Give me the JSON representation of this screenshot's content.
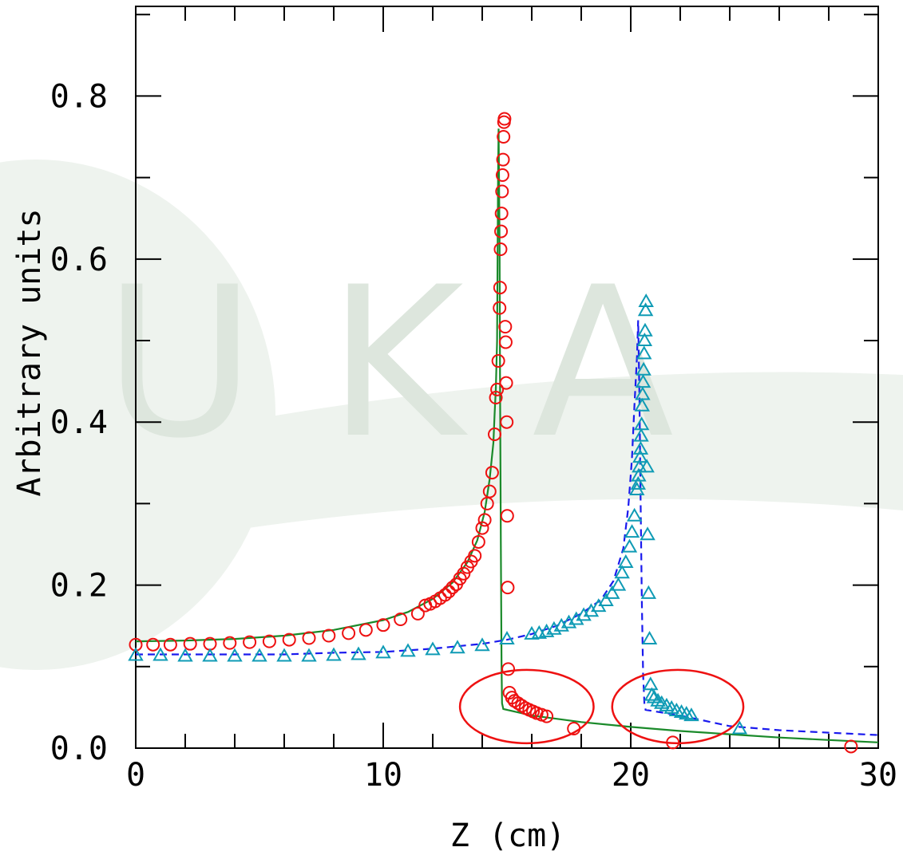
{
  "chart_data": {
    "type": "scatter",
    "title": "",
    "xlabel": "Z (cm)",
    "ylabel": "Arbitrary units",
    "xlim": [
      0,
      30
    ],
    "ylim": [
      0,
      0.91
    ],
    "xticks": [
      0,
      10,
      20,
      30
    ],
    "xtick_labels": [
      "0",
      "10",
      "20",
      "30"
    ],
    "yticks": [
      0.0,
      0.2,
      0.4,
      0.6,
      0.8
    ],
    "ytick_labels": [
      "0.0",
      "0.2",
      "0.4",
      "0.6",
      "0.8"
    ],
    "grid": false,
    "legend": "none",
    "watermark": "UKA",
    "series": [
      {
        "kind": "line",
        "style": "solid",
        "color": "#1a8a2a",
        "points": [
          [
            0,
            0.131
          ],
          [
            2,
            0.132
          ],
          [
            4,
            0.134
          ],
          [
            6,
            0.138
          ],
          [
            8,
            0.145
          ],
          [
            10,
            0.157
          ],
          [
            11,
            0.167
          ],
          [
            12,
            0.183
          ],
          [
            12.8,
            0.203
          ],
          [
            13.4,
            0.228
          ],
          [
            13.8,
            0.255
          ],
          [
            14.1,
            0.29
          ],
          [
            14.3,
            0.33
          ],
          [
            14.45,
            0.375
          ],
          [
            14.5,
            0.41
          ],
          [
            14.55,
            0.44
          ],
          [
            14.6,
            0.5
          ],
          [
            14.62,
            0.6
          ],
          [
            14.64,
            0.7
          ],
          [
            14.66,
            0.76
          ],
          [
            14.7,
            0.62
          ],
          [
            14.72,
            0.45
          ],
          [
            14.75,
            0.25
          ],
          [
            14.78,
            0.1
          ],
          [
            14.8,
            0.055
          ],
          [
            14.85,
            0.048
          ],
          [
            16,
            0.04
          ],
          [
            18,
            0.032
          ],
          [
            20,
            0.026
          ],
          [
            22,
            0.021
          ],
          [
            24,
            0.017
          ],
          [
            26,
            0.013
          ],
          [
            28,
            0.01
          ],
          [
            30,
            0.007
          ]
        ]
      },
      {
        "kind": "line",
        "style": "dashed",
        "color": "#1a1aee",
        "points": [
          [
            0,
            0.115
          ],
          [
            2,
            0.115
          ],
          [
            4,
            0.115
          ],
          [
            6,
            0.115
          ],
          [
            8,
            0.117
          ],
          [
            10,
            0.118
          ],
          [
            12,
            0.122
          ],
          [
            14,
            0.128
          ],
          [
            15,
            0.133
          ],
          [
            16,
            0.14
          ],
          [
            17,
            0.15
          ],
          [
            18,
            0.165
          ],
          [
            18.8,
            0.182
          ],
          [
            19.3,
            0.205
          ],
          [
            19.7,
            0.245
          ],
          [
            19.9,
            0.295
          ],
          [
            20.05,
            0.355
          ],
          [
            20.15,
            0.42
          ],
          [
            20.25,
            0.48
          ],
          [
            20.3,
            0.525
          ],
          [
            20.35,
            0.43
          ],
          [
            20.4,
            0.3
          ],
          [
            20.45,
            0.18
          ],
          [
            20.5,
            0.09
          ],
          [
            20.55,
            0.055
          ],
          [
            20.6,
            0.047
          ],
          [
            22,
            0.04
          ],
          [
            24,
            0.027
          ],
          [
            26,
            0.022
          ],
          [
            28,
            0.019
          ],
          [
            30,
            0.016
          ]
        ]
      },
      {
        "kind": "markers",
        "marker": "circle",
        "color": "#ee1111",
        "points": [
          [
            0,
            0.127
          ],
          [
            0.7,
            0.127
          ],
          [
            1.4,
            0.127
          ],
          [
            2.2,
            0.128
          ],
          [
            3,
            0.128
          ],
          [
            3.8,
            0.129
          ],
          [
            4.6,
            0.13
          ],
          [
            5.4,
            0.131
          ],
          [
            6.2,
            0.133
          ],
          [
            7,
            0.135
          ],
          [
            7.8,
            0.138
          ],
          [
            8.6,
            0.141
          ],
          [
            9.3,
            0.145
          ],
          [
            10,
            0.151
          ],
          [
            10.7,
            0.158
          ],
          [
            11.4,
            0.165
          ],
          [
            11.7,
            0.175
          ],
          [
            11.9,
            0.177
          ],
          [
            12.1,
            0.18
          ],
          [
            12.3,
            0.184
          ],
          [
            12.5,
            0.188
          ],
          [
            12.65,
            0.192
          ],
          [
            12.8,
            0.197
          ],
          [
            12.95,
            0.201
          ],
          [
            13.1,
            0.208
          ],
          [
            13.25,
            0.214
          ],
          [
            13.4,
            0.222
          ],
          [
            13.55,
            0.229
          ],
          [
            13.7,
            0.236
          ],
          [
            13.85,
            0.253
          ],
          [
            14,
            0.27
          ],
          [
            14.1,
            0.28
          ],
          [
            14.2,
            0.3
          ],
          [
            14.3,
            0.315
          ],
          [
            14.4,
            0.338
          ],
          [
            14.5,
            0.385
          ],
          [
            14.55,
            0.43
          ],
          [
            14.6,
            0.44
          ],
          [
            14.65,
            0.475
          ],
          [
            14.7,
            0.54
          ],
          [
            14.72,
            0.565
          ],
          [
            14.74,
            0.612
          ],
          [
            14.76,
            0.634
          ],
          [
            14.78,
            0.656
          ],
          [
            14.8,
            0.683
          ],
          [
            14.82,
            0.703
          ],
          [
            14.84,
            0.722
          ],
          [
            14.86,
            0.75
          ],
          [
            14.88,
            0.768
          ],
          [
            14.9,
            0.772
          ],
          [
            14.93,
            0.517
          ],
          [
            14.95,
            0.498
          ],
          [
            14.97,
            0.448
          ],
          [
            14.99,
            0.4
          ],
          [
            15.01,
            0.285
          ],
          [
            15.03,
            0.197
          ],
          [
            15.05,
            0.097
          ],
          [
            15.1,
            0.068
          ],
          [
            15.2,
            0.062
          ],
          [
            15.3,
            0.058
          ],
          [
            15.45,
            0.055
          ],
          [
            15.6,
            0.052
          ],
          [
            15.75,
            0.049
          ],
          [
            15.9,
            0.047
          ],
          [
            16.05,
            0.045
          ],
          [
            16.2,
            0.043
          ],
          [
            16.4,
            0.041
          ],
          [
            16.6,
            0.039
          ],
          [
            17.7,
            0.024
          ],
          [
            21.7,
            0.007
          ],
          [
            28.9,
            0.002
          ]
        ]
      },
      {
        "kind": "markers",
        "marker": "triangle",
        "color": "#0f9bb5",
        "points": [
          [
            0,
            0.114
          ],
          [
            1,
            0.114
          ],
          [
            2,
            0.113
          ],
          [
            3,
            0.113
          ],
          [
            4,
            0.113
          ],
          [
            5,
            0.113
          ],
          [
            6,
            0.113
          ],
          [
            7,
            0.113
          ],
          [
            8,
            0.114
          ],
          [
            9,
            0.115
          ],
          [
            10,
            0.117
          ],
          [
            11,
            0.119
          ],
          [
            12,
            0.121
          ],
          [
            13,
            0.123
          ],
          [
            14,
            0.126
          ],
          [
            15,
            0.134
          ],
          [
            16,
            0.14
          ],
          [
            16.3,
            0.141
          ],
          [
            16.6,
            0.143
          ],
          [
            16.9,
            0.146
          ],
          [
            17.2,
            0.15
          ],
          [
            17.5,
            0.154
          ],
          [
            17.8,
            0.158
          ],
          [
            18.1,
            0.163
          ],
          [
            18.4,
            0.168
          ],
          [
            18.7,
            0.174
          ],
          [
            19,
            0.181
          ],
          [
            19.25,
            0.19
          ],
          [
            19.5,
            0.2
          ],
          [
            19.65,
            0.215
          ],
          [
            19.8,
            0.228
          ],
          [
            19.95,
            0.247
          ],
          [
            20.05,
            0.265
          ],
          [
            20.15,
            0.285
          ],
          [
            20.25,
            0.317
          ],
          [
            20.3,
            0.324
          ],
          [
            20.32,
            0.334
          ],
          [
            20.35,
            0.345
          ],
          [
            20.38,
            0.357
          ],
          [
            20.4,
            0.367
          ],
          [
            20.42,
            0.383
          ],
          [
            20.44,
            0.397
          ],
          [
            20.46,
            0.42
          ],
          [
            20.48,
            0.434
          ],
          [
            20.5,
            0.449
          ],
          [
            20.52,
            0.464
          ],
          [
            20.54,
            0.484
          ],
          [
            20.56,
            0.5
          ],
          [
            20.58,
            0.512
          ],
          [
            20.6,
            0.537
          ],
          [
            20.62,
            0.548
          ],
          [
            20.65,
            0.345
          ],
          [
            20.68,
            0.262
          ],
          [
            20.72,
            0.19
          ],
          [
            20.76,
            0.134
          ],
          [
            20.8,
            0.078
          ],
          [
            20.85,
            0.065
          ],
          [
            20.95,
            0.062
          ],
          [
            21.1,
            0.058
          ],
          [
            21.25,
            0.055
          ],
          [
            21.45,
            0.052
          ],
          [
            21.65,
            0.049
          ],
          [
            21.85,
            0.046
          ],
          [
            22.05,
            0.044
          ],
          [
            22.25,
            0.042
          ],
          [
            22.45,
            0.04
          ],
          [
            24.4,
            0.024
          ]
        ]
      }
    ],
    "annotations": [
      {
        "shape": "ellipse",
        "color": "#ee1111",
        "cx": 15.8,
        "cy": 0.051,
        "rx": 2.7,
        "ry": 0.045
      },
      {
        "shape": "ellipse",
        "color": "#ee1111",
        "cx": 21.9,
        "cy": 0.051,
        "rx": 2.65,
        "ry": 0.045
      }
    ]
  }
}
